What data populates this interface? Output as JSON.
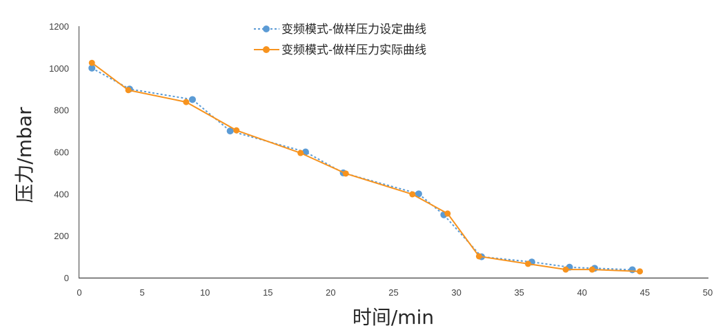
{
  "chart_data": {
    "type": "line",
    "title": "",
    "xlabel": "时间/min",
    "ylabel": "压力/mbar",
    "xlim": [
      0,
      50
    ],
    "ylim": [
      0,
      1200
    ],
    "xticks": [
      0,
      5,
      10,
      15,
      20,
      25,
      30,
      35,
      40,
      45,
      50
    ],
    "yticks": [
      0,
      200,
      400,
      600,
      800,
      1000,
      1200
    ],
    "grid": false,
    "legend_position": "top",
    "series": [
      {
        "name": "变频模式-做样压力设定曲线",
        "color": "#5b9bd5",
        "line_style": "dotted",
        "points": [
          [
            1,
            1000
          ],
          [
            4,
            900
          ],
          [
            9,
            850
          ],
          [
            12,
            700
          ],
          [
            18,
            600
          ],
          [
            21,
            500
          ],
          [
            27,
            400
          ],
          [
            29,
            300
          ],
          [
            32,
            100
          ],
          [
            36,
            75
          ],
          [
            39,
            50
          ],
          [
            41,
            45
          ],
          [
            44,
            38
          ]
        ]
      },
      {
        "name": "变频模式-做样压力实际曲线",
        "color": "#f7931e",
        "line_style": "solid",
        "points": [
          [
            1,
            1025
          ],
          [
            3.9,
            895
          ],
          [
            8.5,
            838
          ],
          [
            12.5,
            703
          ],
          [
            17.6,
            595
          ],
          [
            21.2,
            497
          ],
          [
            26.5,
            398
          ],
          [
            29.3,
            306
          ],
          [
            31.8,
            102
          ],
          [
            35.7,
            66
          ],
          [
            38.7,
            39
          ],
          [
            40.8,
            39
          ],
          [
            44.6,
            30
          ]
        ]
      }
    ]
  }
}
